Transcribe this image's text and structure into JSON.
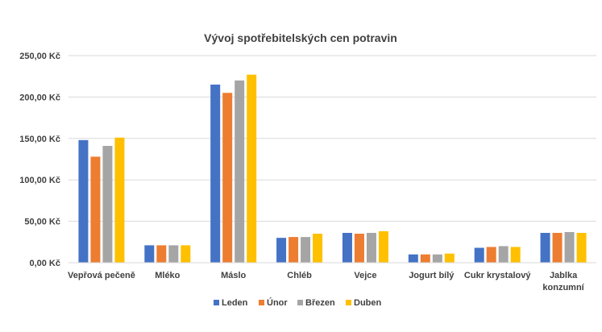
{
  "chart_data": {
    "type": "bar",
    "title": "Vývoj spotřebitelských cen potravin",
    "xlabel": "",
    "ylabel": "",
    "ylim": [
      0,
      250
    ],
    "yticks": [
      0,
      50,
      100,
      150,
      200,
      250
    ],
    "ytick_labels": [
      "0,00 Kč",
      "50,00 Kč",
      "100,00 Kč",
      "150,00 Kč",
      "200,00 Kč",
      "250,00 Kč"
    ],
    "grid": true,
    "legend_position": "bottom",
    "categories": [
      [
        "Vepřová pečeně"
      ],
      [
        "Mléko"
      ],
      [
        "Máslo"
      ],
      [
        "Chléb"
      ],
      [
        "Vejce"
      ],
      [
        "Jogurt bílý"
      ],
      [
        "Cukr krystalový"
      ],
      [
        "Jablka",
        "konzumní"
      ]
    ],
    "series": [
      {
        "name": "Leden",
        "color": "#4472C4",
        "values": [
          148,
          21,
          215,
          30,
          36,
          10,
          18,
          36
        ]
      },
      {
        "name": "Únor",
        "color": "#ED7D31",
        "values": [
          128,
          21,
          205,
          31,
          35,
          10,
          19,
          36
        ]
      },
      {
        "name": "Březen",
        "color": "#A5A5A5",
        "values": [
          141,
          21,
          220,
          31,
          36,
          10,
          20,
          37
        ]
      },
      {
        "name": "Duben",
        "color": "#FFC000",
        "values": [
          151,
          21,
          227,
          35,
          38,
          11,
          19,
          36
        ]
      }
    ]
  }
}
